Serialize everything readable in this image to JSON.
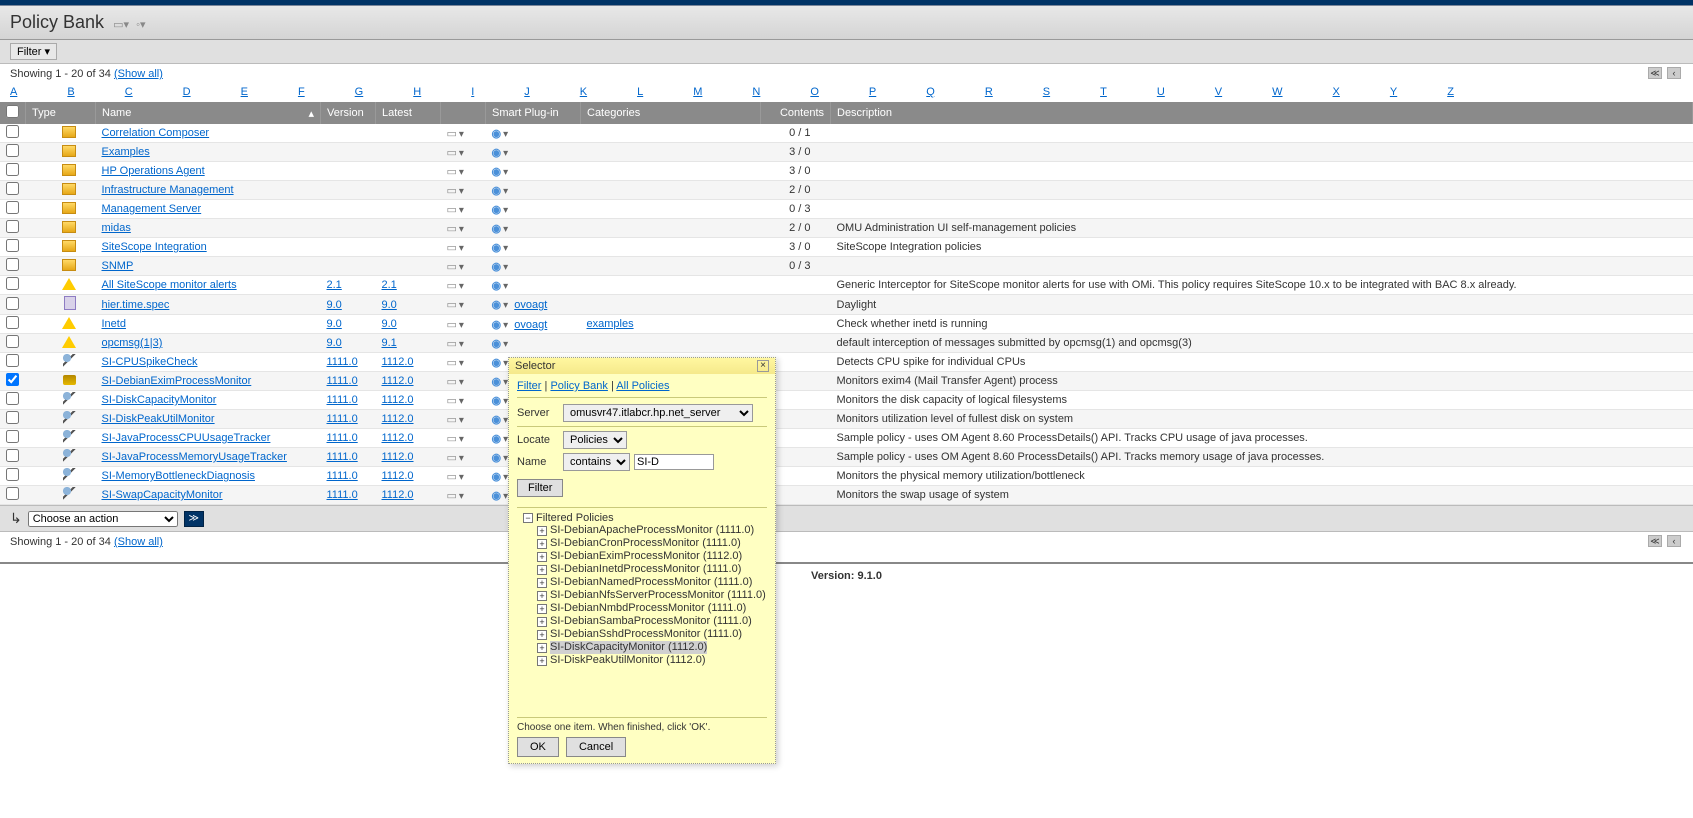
{
  "page": {
    "title": "Policy Bank",
    "filter_label": "Filter",
    "showing_text": "Showing 1 - 20 of 34 ",
    "show_all": "(Show all)",
    "alpha": [
      "A",
      "B",
      "C",
      "D",
      "E",
      "F",
      "G",
      "H",
      "I",
      "J",
      "K",
      "L",
      "M",
      "N",
      "O",
      "P",
      "Q",
      "R",
      "S",
      "T",
      "U",
      "V",
      "W",
      "X",
      "Y",
      "Z"
    ],
    "version_footer_label": "Version: ",
    "version_footer_value": "9.1.0",
    "action_placeholder": "Choose an action"
  },
  "columns": {
    "type": "Type",
    "name": "Name",
    "version": "Version",
    "latest": "Latest",
    "smart": "Smart Plug-in",
    "categories": "Categories",
    "contents": "Contents",
    "description": "Description"
  },
  "rows": [
    {
      "icon": "folder",
      "name": "Correlation Composer",
      "contents": "0 / 1"
    },
    {
      "icon": "folder",
      "name": "Examples",
      "contents": "3 / 0"
    },
    {
      "icon": "folder",
      "name": "HP Operations Agent",
      "contents": "3 / 0"
    },
    {
      "icon": "folder",
      "name": "Infrastructure Management",
      "contents": "2 / 0"
    },
    {
      "icon": "folder",
      "name": "Management Server",
      "contents": "0 / 3"
    },
    {
      "icon": "folder",
      "name": "midas",
      "contents": "2 / 0",
      "desc": "OMU Administration UI self-management policies"
    },
    {
      "icon": "folder",
      "name": "SiteScope Integration",
      "contents": "3 / 0",
      "desc": "SiteScope Integration policies"
    },
    {
      "icon": "folder",
      "name": "SNMP",
      "contents": "0 / 3"
    },
    {
      "icon": "warning",
      "name": "All SiteScope monitor alerts",
      "version": "2.1",
      "latest": "2.1",
      "desc": "Generic Interceptor for SiteScope monitor alerts for use with OMi. This policy requires SiteScope 10.x to be integrated with BAC 8.x already."
    },
    {
      "icon": "doc",
      "name": "hier.time.spec",
      "version": "9.0",
      "latest": "9.0",
      "smart": "ovoagt",
      "desc": "Daylight"
    },
    {
      "icon": "warning",
      "name": "Inetd",
      "version": "9.0",
      "latest": "9.0",
      "smart": "ovoagt",
      "categories": "examples",
      "desc": "Check whether inetd is running"
    },
    {
      "icon": "warning",
      "name": "opcmsg(1|3)",
      "version": "9.0",
      "latest": "9.1",
      "smart": "",
      "desc": "default interception of messages submitted by opcmsg(1) and opcmsg(3)"
    },
    {
      "icon": "mag",
      "name": "SI-CPUSpikeCheck",
      "version": "1111.0",
      "latest": "1112.0",
      "desc": "Detects CPU spike for individual CPUs"
    },
    {
      "icon": "disk",
      "name": "SI-DebianEximProcessMonitor",
      "version": "1111.0",
      "latest": "1112.0",
      "desc": "Monitors exim4 (Mail Transfer Agent) process",
      "checked": true
    },
    {
      "icon": "mag",
      "name": "SI-DiskCapacityMonitor",
      "version": "1111.0",
      "latest": "1112.0",
      "desc": "Monitors the disk capacity of logical filesystems"
    },
    {
      "icon": "mag",
      "name": "SI-DiskPeakUtilMonitor",
      "version": "1111.0",
      "latest": "1112.0",
      "desc": "Monitors utilization level of fullest disk on system"
    },
    {
      "icon": "mag",
      "name": "SI-JavaProcessCPUUsageTracker",
      "version": "1111.0",
      "latest": "1112.0",
      "desc": "Sample policy - uses OM Agent 8.60 ProcessDetails() API. Tracks CPU usage of java processes."
    },
    {
      "icon": "mag",
      "name": "SI-JavaProcessMemoryUsageTracker",
      "version": "1111.0",
      "latest": "1112.0",
      "desc": "Sample policy - uses OM Agent 8.60 ProcessDetails() API. Tracks memory usage of java processes."
    },
    {
      "icon": "mag",
      "name": "SI-MemoryBottleneckDiagnosis",
      "version": "1111.0",
      "latest": "1112.0",
      "desc": "Monitors the physical memory utilization/bottleneck"
    },
    {
      "icon": "mag",
      "name": "SI-SwapCapacityMonitor",
      "version": "1111.0",
      "latest": "1112.0",
      "desc": "Monitors the swap usage of system"
    }
  ],
  "dialog": {
    "title": "Selector",
    "bc": [
      "Filter",
      "Policy Bank",
      "All Policies"
    ],
    "server_label": "Server",
    "server_value": "omusvr47.itlabcr.hp.net_server",
    "locate_label": "Locate",
    "locate_value": "Policies",
    "name_label": "Name",
    "name_op": "contains",
    "name_value": "SI-D",
    "filter_btn": "Filter",
    "tree_root": "Filtered Policies",
    "tree_items": [
      "SI-DebianApacheProcessMonitor (1111.0)",
      "SI-DebianCronProcessMonitor (1111.0)",
      "SI-DebianEximProcessMonitor (1112.0)",
      "SI-DebianInetdProcessMonitor (1111.0)",
      "SI-DebianNamedProcessMonitor (1111.0)",
      "SI-DebianNfsServerProcessMonitor (1111.0)",
      "SI-DebianNmbdProcessMonitor (1111.0)",
      "SI-DebianSambaProcessMonitor (1111.0)",
      "SI-DebianSshdProcessMonitor (1111.0)",
      "SI-DiskCapacityMonitor (1112.0)",
      "SI-DiskPeakUtilMonitor (1112.0)"
    ],
    "tree_selected_index": 9,
    "foot_msg": "Choose one item. When finished, click 'OK'.",
    "ok": "OK",
    "cancel": "Cancel"
  }
}
